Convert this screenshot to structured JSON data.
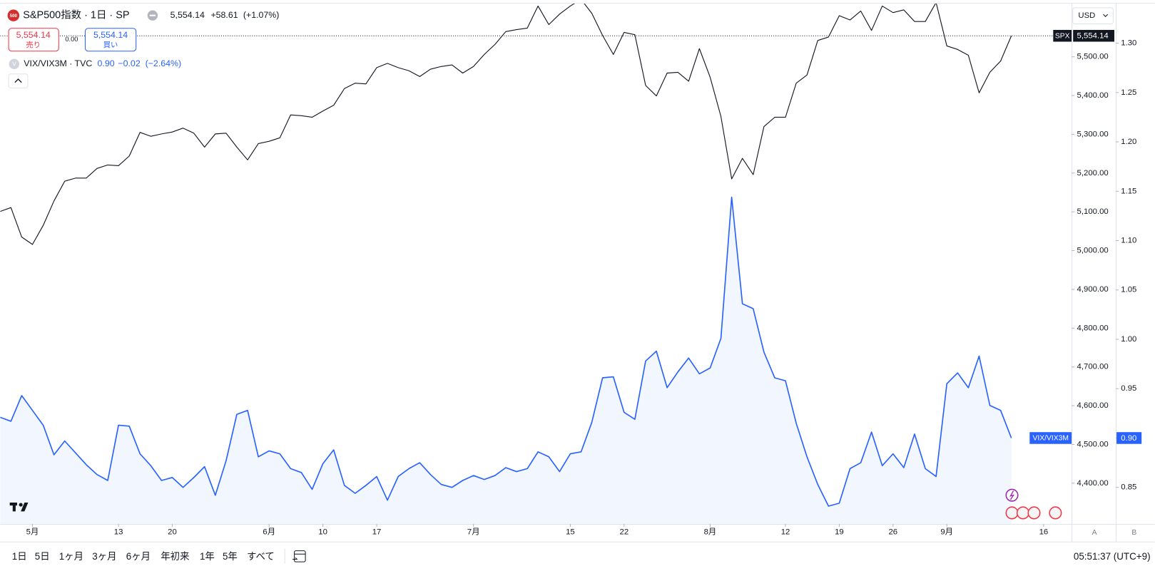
{
  "header": {
    "icon": "500",
    "title": "S&P500指数 · 1日 · SP",
    "price": "5,554.14",
    "change": "+58.61",
    "change_pct": "(+1.07%)",
    "sell_price": "5,554.14",
    "sell": "売り",
    "spread": "0.00",
    "buy_price": "5,554.14",
    "buy": "買い",
    "icon2": "V",
    "study": "VIX/VIX3M · TVC",
    "study_value": "0.90",
    "study_change": "−0.02",
    "study_change_pct": "(−2.64%)",
    "currency": "USD"
  },
  "chart_data": {
    "type": "line",
    "xlim": [
      0,
      99.6
    ],
    "xticks": [
      {
        "value": 3,
        "label": "5月"
      },
      {
        "value": 11,
        "label": "13"
      },
      {
        "value": 16,
        "label": "20"
      },
      {
        "value": 25,
        "label": "6月"
      },
      {
        "value": 30,
        "label": "10"
      },
      {
        "value": 35,
        "label": "17"
      },
      {
        "value": 44,
        "label": "7月"
      },
      {
        "value": 53,
        "label": "15"
      },
      {
        "value": 58,
        "label": "22"
      },
      {
        "value": 66,
        "label": "8月"
      },
      {
        "value": 73,
        "label": "12"
      },
      {
        "value": 78,
        "label": "19"
      },
      {
        "value": 83,
        "label": "26"
      },
      {
        "value": 88,
        "label": "9月"
      },
      {
        "value": 97,
        "label": "16"
      }
    ],
    "ylim": [
      4295,
      5637
    ],
    "yticks": [
      {
        "value": 4400,
        "label": "4,400.00"
      },
      {
        "value": 4500,
        "label": "4,500.00"
      },
      {
        "value": 4600,
        "label": "4,600.00"
      },
      {
        "value": 4700,
        "label": "4,700.00"
      },
      {
        "value": 4800,
        "label": "4,800.00"
      },
      {
        "value": 4900,
        "label": "4,900.00"
      },
      {
        "value": 5000,
        "label": "5,000.00"
      },
      {
        "value": 5100,
        "label": "5,100.00"
      },
      {
        "value": 5200,
        "label": "5,200.00"
      },
      {
        "value": 5300,
        "label": "5,300.00"
      },
      {
        "value": 5400,
        "label": "5,400.00"
      },
      {
        "value": 5500,
        "label": "5,500.00"
      }
    ],
    "y2lim": [
      0.813,
      1.34
    ],
    "y2ticks": [
      {
        "value": 0.85,
        "label": "0.85"
      },
      {
        "value": 0.9,
        "label": "0.90"
      },
      {
        "value": 0.95,
        "label": "0.95"
      },
      {
        "value": 1.0,
        "label": "1.00"
      },
      {
        "value": 1.05,
        "label": "1.05"
      },
      {
        "value": 1.1,
        "label": "1.10"
      },
      {
        "value": 1.15,
        "label": "1.15"
      },
      {
        "value": 1.2,
        "label": "1.20"
      },
      {
        "value": 1.25,
        "label": "1.25"
      },
      {
        "value": 1.3,
        "label": "1.30"
      }
    ],
    "series": [
      {
        "name": "SPX",
        "color": "#131722",
        "axis": "y",
        "last_value_label": "5,554.14",
        "values": [
          5101,
          5111,
          5035,
          5016,
          5065,
          5128,
          5179,
          5187,
          5187,
          5212,
          5221,
          5219,
          5244,
          5305,
          5295,
          5301,
          5306,
          5316,
          5303,
          5267,
          5301,
          5303,
          5267,
          5234,
          5276,
          5282,
          5291,
          5350,
          5348,
          5344,
          5360,
          5375,
          5418,
          5432,
          5430,
          5472,
          5483,
          5472,
          5464,
          5449,
          5468,
          5475,
          5479,
          5458,
          5475,
          5506,
          5532,
          5565,
          5570,
          5574,
          5631,
          5583,
          5610,
          5631,
          5648,
          5612,
          5555,
          5506,
          5563,
          5557,
          5426,
          5399,
          5458,
          5460,
          5437,
          5521,
          5447,
          5346,
          5185,
          5238,
          5196,
          5320,
          5344,
          5344,
          5432,
          5453,
          5542,
          5551,
          5606,
          5595,
          5618,
          5568,
          5631,
          5614,
          5621,
          5591,
          5591,
          5640,
          5528,
          5519,
          5504,
          5407,
          5460,
          5489,
          5554.14
        ]
      },
      {
        "name": "VIX/VIX3M",
        "color": "#2962ff",
        "axis": "y2",
        "last_value_label": "0.90",
        "values": [
          0.921,
          0.917,
          0.943,
          0.928,
          0.913,
          0.883,
          0.897,
          0.885,
          0.873,
          0.863,
          0.857,
          0.913,
          0.912,
          0.884,
          0.872,
          0.857,
          0.86,
          0.85,
          0.86,
          0.871,
          0.842,
          0.877,
          0.924,
          0.928,
          0.881,
          0.887,
          0.884,
          0.869,
          0.865,
          0.848,
          0.874,
          0.888,
          0.852,
          0.844,
          0.852,
          0.861,
          0.837,
          0.861,
          0.869,
          0.875,
          0.863,
          0.853,
          0.85,
          0.857,
          0.862,
          0.858,
          0.862,
          0.87,
          0.866,
          0.869,
          0.886,
          0.881,
          0.866,
          0.884,
          0.886,
          0.916,
          0.961,
          0.962,
          0.926,
          0.919,
          0.978,
          0.988,
          0.951,
          0.967,
          0.981,
          0.965,
          0.971,
          1.001,
          1.144,
          1.036,
          1.031,
          0.987,
          0.961,
          0.958,
          0.915,
          0.881,
          0.853,
          0.831,
          0.834,
          0.869,
          0.875,
          0.906,
          0.872,
          0.884,
          0.87,
          0.904,
          0.869,
          0.861,
          0.955,
          0.966,
          0.951,
          0.983,
          0.933,
          0.928,
          0.9
        ]
      }
    ]
  },
  "axis_buttons": [
    "A",
    "B"
  ],
  "toolbar": {
    "ranges": [
      "1日",
      "5日",
      "1ヶ月",
      "3ヶ月",
      "6ヶ月",
      "年初来",
      "1年",
      "5年",
      "すべて"
    ],
    "clock": "05:51:37 (UTC+9)"
  }
}
